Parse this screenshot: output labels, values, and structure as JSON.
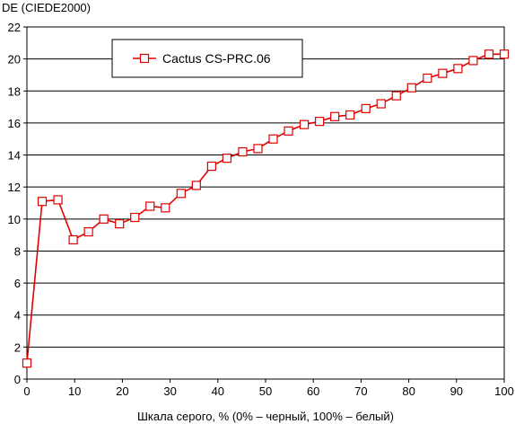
{
  "chart_data": {
    "type": "line",
    "ylabel": "DE (CIEDE2000)",
    "xlabel": "Шкала серого, % (0% – черный, 100% – белый)",
    "xlim": [
      0,
      100
    ],
    "ylim": [
      0,
      22
    ],
    "x_ticks": [
      0,
      10,
      20,
      30,
      40,
      50,
      60,
      70,
      80,
      90,
      100
    ],
    "y_ticks": [
      0,
      2,
      4,
      6,
      8,
      10,
      12,
      14,
      16,
      18,
      20,
      22
    ],
    "grid": "horizontal",
    "legend_position": "top-left",
    "series": [
      {
        "name": "Cactus CS-PRC.06",
        "color": "#e00000",
        "marker": "square",
        "x": [
          0,
          3.2,
          6.5,
          9.7,
          12.9,
          16.1,
          19.4,
          22.6,
          25.8,
          29.0,
          32.3,
          35.5,
          38.7,
          41.9,
          45.2,
          48.4,
          51.6,
          54.8,
          58.1,
          61.3,
          64.5,
          67.7,
          71.0,
          74.2,
          77.4,
          80.6,
          83.9,
          87.1,
          90.3,
          93.5,
          96.8,
          100
        ],
        "y": [
          1.0,
          11.1,
          11.2,
          8.7,
          9.2,
          10.0,
          9.7,
          10.1,
          10.8,
          10.7,
          11.6,
          12.1,
          13.3,
          13.8,
          14.2,
          14.4,
          15.0,
          15.5,
          15.9,
          16.1,
          16.4,
          16.5,
          16.9,
          17.2,
          17.7,
          18.2,
          18.8,
          19.1,
          19.4,
          19.9,
          20.3,
          20.3
        ]
      }
    ]
  }
}
